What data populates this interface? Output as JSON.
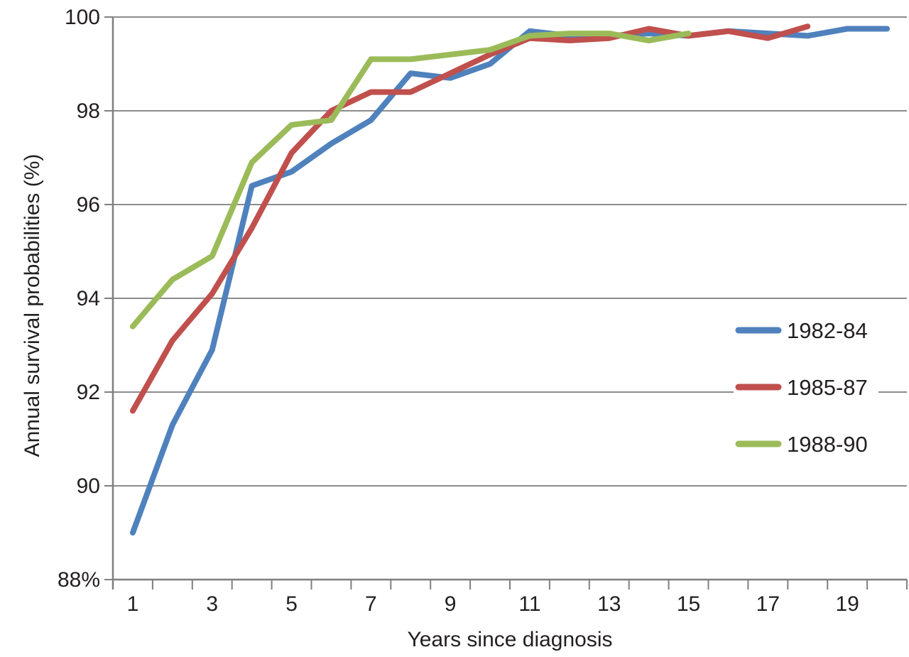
{
  "figure": {
    "background": "#ffffff"
  },
  "chart_data": {
    "type": "line",
    "title": "",
    "xlabel": "Years since diagnosis",
    "ylabel": "Annual survival probabilities (%)",
    "x": [
      1,
      2,
      3,
      4,
      5,
      6,
      7,
      8,
      9,
      10,
      11,
      12,
      13,
      14,
      15,
      16,
      17,
      18,
      19,
      20
    ],
    "x_tick_labels": [
      {
        "year": 1,
        "label": "1"
      },
      {
        "year": 3,
        "label": "3"
      },
      {
        "year": 5,
        "label": "5"
      },
      {
        "year": 7,
        "label": "7"
      },
      {
        "year": 9,
        "label": "9"
      },
      {
        "year": 11,
        "label": "11"
      },
      {
        "year": 13,
        "label": "13"
      },
      {
        "year": 15,
        "label": "15"
      },
      {
        "year": 17,
        "label": "17"
      },
      {
        "year": 19,
        "label": "19"
      }
    ],
    "y_ticks": [
      {
        "value": 100,
        "label": "100"
      },
      {
        "value": 98,
        "label": "98"
      },
      {
        "value": 96,
        "label": "96"
      },
      {
        "value": 94,
        "label": "94"
      },
      {
        "value": 92,
        "label": "92"
      },
      {
        "value": 90,
        "label": "90"
      },
      {
        "value": 88,
        "label": "88%"
      }
    ],
    "ylim": [
      88,
      100
    ],
    "grid": "horizontal-only",
    "legend_position": "middle-right",
    "series": [
      {
        "name": "1982-84",
        "color": "#4F81BD",
        "values": [
          89.0,
          91.3,
          92.9,
          96.4,
          96.7,
          97.3,
          97.8,
          98.8,
          98.7,
          99.0,
          99.7,
          99.6,
          99.6,
          99.65,
          99.6,
          99.7,
          99.65,
          99.6,
          99.75,
          99.75
        ]
      },
      {
        "name": "1985-87",
        "color": "#C0504D",
        "values": [
          91.6,
          93.1,
          94.1,
          95.5,
          97.1,
          98.0,
          98.4,
          98.4,
          98.8,
          99.2,
          99.55,
          99.5,
          99.55,
          99.75,
          99.6,
          99.7,
          99.55,
          99.8,
          null,
          null
        ]
      },
      {
        "name": "1988-90",
        "color": "#9BBB59",
        "values": [
          93.4,
          94.4,
          94.9,
          96.9,
          97.7,
          97.8,
          99.1,
          99.1,
          99.2,
          99.3,
          99.6,
          99.65,
          99.65,
          99.5,
          99.65,
          null,
          null,
          null,
          null,
          null
        ]
      }
    ]
  },
  "styles": {
    "grid_color": "#8c8c8c",
    "axis_color": "#7f7f7f",
    "text_color": "#231f20",
    "legend_background": "#ffffff"
  }
}
